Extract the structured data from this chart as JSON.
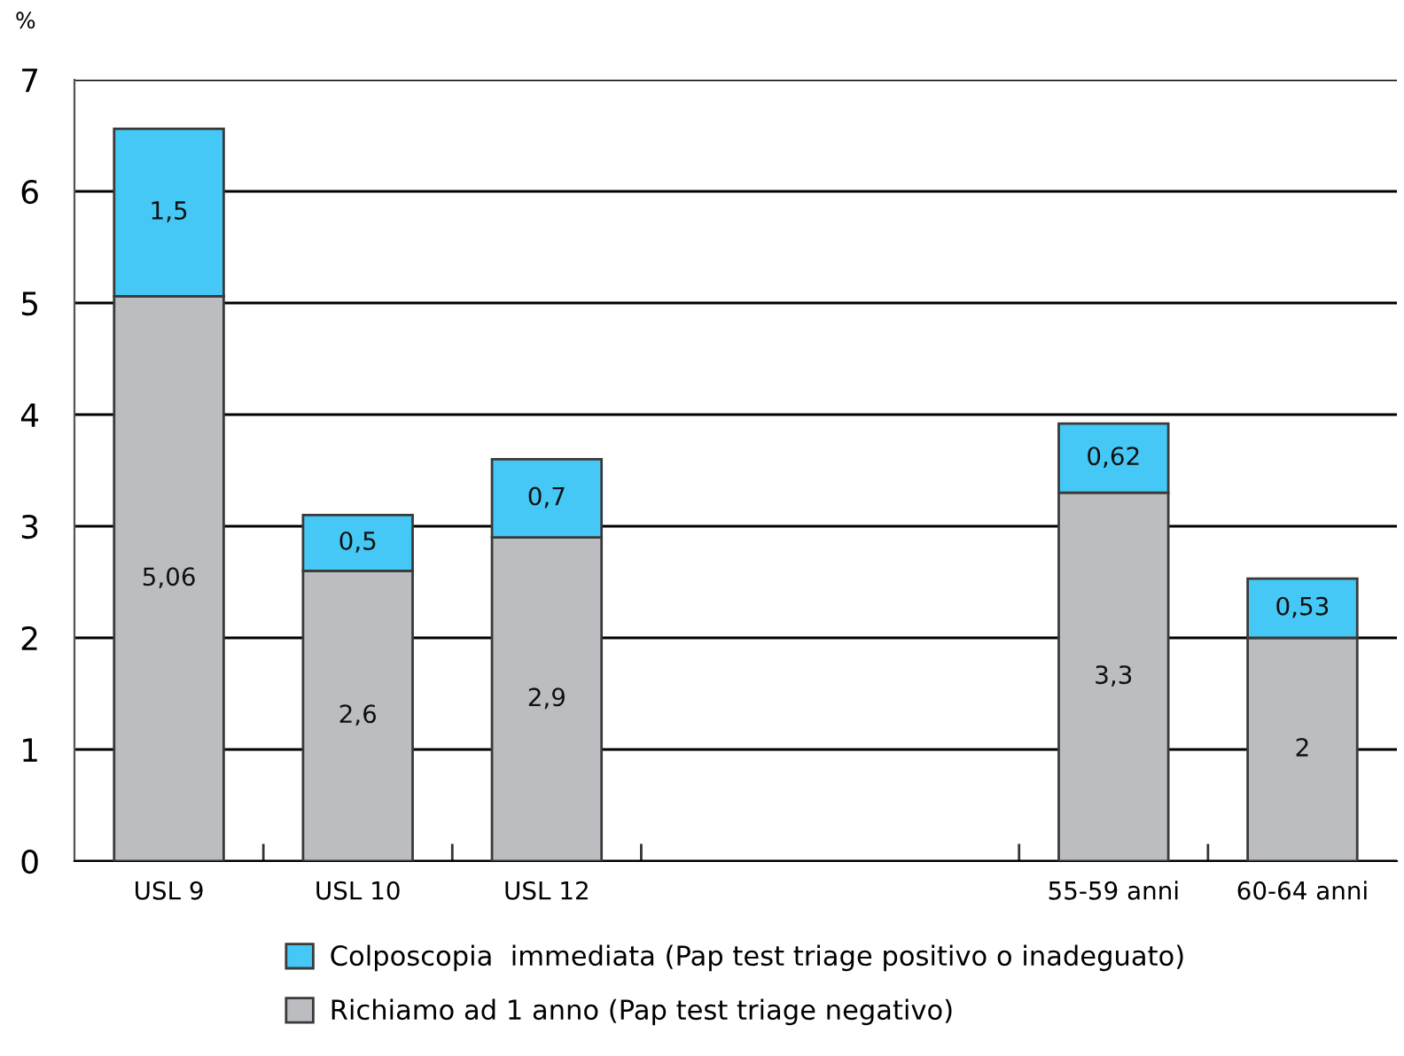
{
  "chart_data": {
    "type": "bar",
    "stacked": true,
    "ylabel": "%",
    "categories": [
      "USL 9",
      "USL 10",
      "USL 12",
      null,
      null,
      "55-59 anni",
      "60-64 anni"
    ],
    "series": [
      {
        "name": "Richiamo ad 1 anno (Pap test triage negativo)",
        "color": "#bcbdc0",
        "values": [
          5.06,
          2.6,
          2.9,
          null,
          null,
          3.3,
          2
        ],
        "value_labels": [
          "5,06",
          "2,6",
          "2,9",
          null,
          null,
          "3,3",
          "2"
        ]
      },
      {
        "name": "Colposcopia  immediata (Pap test triage positivo o inadeguato)",
        "color": "#45c8f5",
        "values": [
          1.5,
          0.5,
          0.7,
          null,
          null,
          0.62,
          0.53
        ],
        "value_labels": [
          "1,5",
          "0,5",
          "0,7",
          null,
          null,
          "0,62",
          "0,53"
        ]
      }
    ],
    "ylim": [
      0,
      7
    ],
    "yticks": [
      0,
      1,
      2,
      3,
      4,
      5,
      6,
      7
    ],
    "grid": "y",
    "legend": "bottom"
  }
}
